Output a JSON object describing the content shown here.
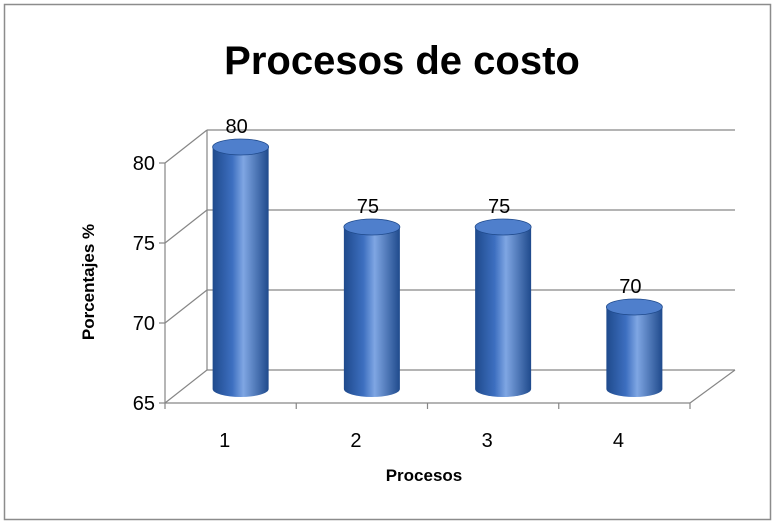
{
  "chart_data": {
    "type": "bar",
    "style": "3d-cylinder",
    "title": "Procesos de costo",
    "xlabel": "Procesos",
    "ylabel": "Porcentajes %",
    "categories": [
      "1",
      "2",
      "3",
      "4"
    ],
    "values": [
      80,
      75,
      75,
      70
    ],
    "data_labels": [
      "80",
      "75",
      "75",
      "70"
    ],
    "ylim": [
      65,
      80
    ],
    "yticks": [
      65,
      70,
      75,
      80
    ],
    "grid": true,
    "legend": "none",
    "colors": {
      "bar_dark": "#1f4a8c",
      "bar_mid": "#3d6fc0",
      "bar_light": "#7fa6e3",
      "bar_top": "#4f7fcc",
      "grid": "#868686",
      "frame": "#8c8c8c"
    }
  }
}
